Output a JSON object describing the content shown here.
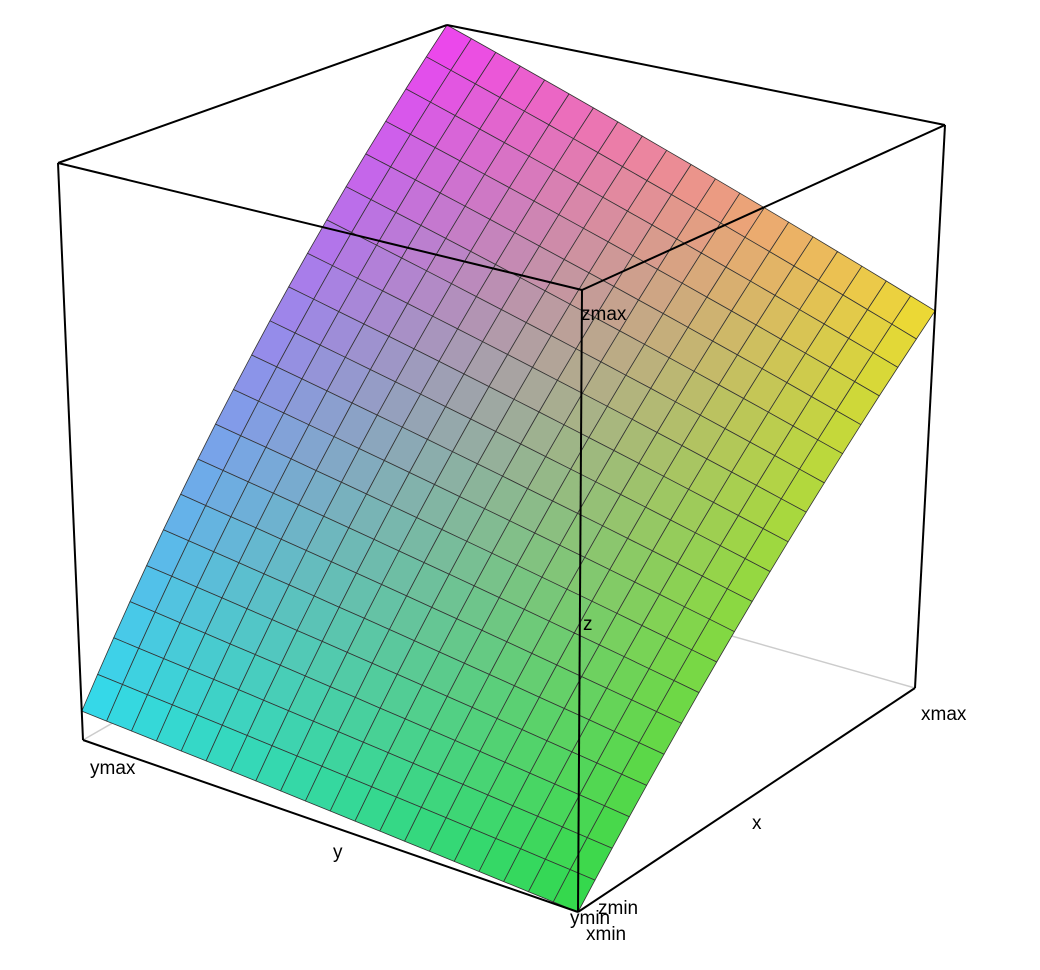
{
  "chart_data": {
    "type": "surface3d",
    "title": "",
    "grid": false,
    "legend": "none",
    "axis_labels": {
      "x": "x",
      "x_max": "xmax",
      "x_min": "xmin",
      "y": "y",
      "y_max": "ymax",
      "y_min": "ymin",
      "z": "z",
      "z_max": "zmax",
      "z_min": "zmin"
    },
    "surface": {
      "grid_resolution": [
        20,
        20
      ],
      "corner_heights_normalized": {
        "xmin_ymin": 0.0,
        "xmax_ymin": 0.67,
        "xmin_ymax": 0.05,
        "xmax_ymax": 1.0
      },
      "corner_colors": {
        "xmin_ymin": "#30d84a",
        "xmax_ymin": "#f0dc30",
        "xmin_ymax": "#30dcec",
        "xmax_ymax": "#f040f0"
      },
      "mesh_line_color": "#333333"
    },
    "box": {
      "edge_color": "#000000",
      "hidden_edge_color": "#cccccc"
    }
  }
}
